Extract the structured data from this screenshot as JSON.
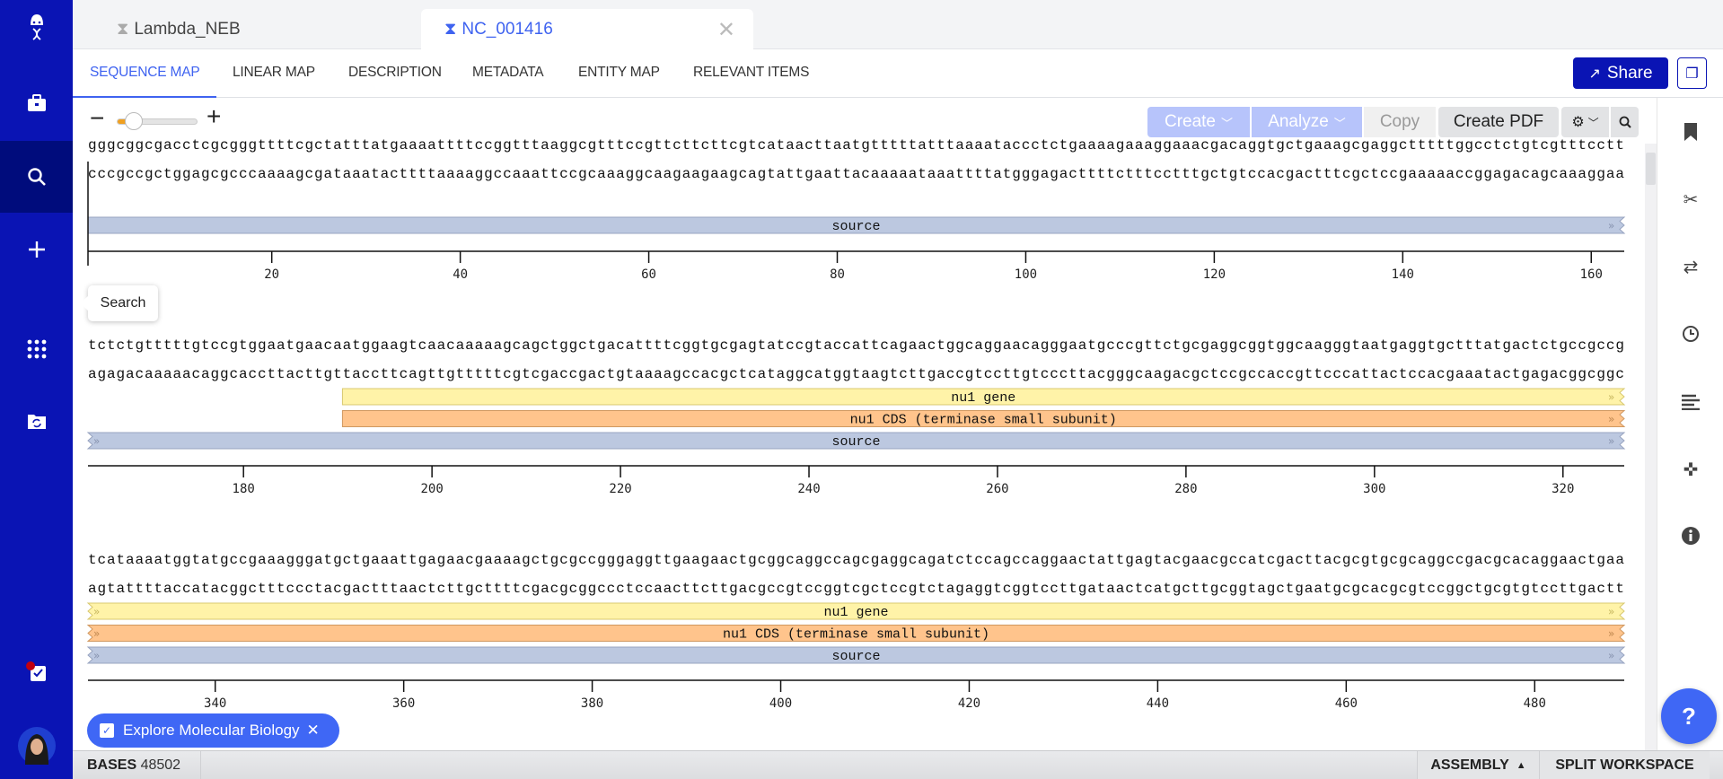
{
  "app": {
    "colors": {
      "sidebar": "#0a14b4",
      "accent": "#3f63f0",
      "share": "#0a14b4",
      "gene": "#fff3a8",
      "cds": "#ffc48c",
      "source": "#bcc8e0"
    }
  },
  "sidebar": {
    "items": [
      {
        "icon": "dna-logo-icon"
      },
      {
        "icon": "briefcase-icon"
      },
      {
        "icon": "search-icon",
        "active": true
      },
      {
        "icon": "plus-icon"
      },
      {
        "icon": "apps-grid-icon"
      },
      {
        "icon": "sync-folder-icon"
      },
      {
        "icon": "tasks-check-icon",
        "badge": true
      },
      {
        "icon": "avatar"
      }
    ],
    "tooltip": "Search"
  },
  "file_tabs": [
    {
      "label": "Lambda_NEB",
      "active": false
    },
    {
      "label": "NC_001416",
      "active": true
    }
  ],
  "nav_tabs": [
    "SEQUENCE MAP",
    "LINEAR MAP",
    "DESCRIPTION",
    "METADATA",
    "ENTITY MAP",
    "RELEVANT ITEMS"
  ],
  "header": {
    "share_label": "Share"
  },
  "toolbar": {
    "zoom_minus": "−",
    "zoom_plus": "+",
    "zoom_level": 0.15,
    "create": "Create",
    "analyze": "Analyze",
    "copy": "Copy",
    "create_pdf": "Create PDF"
  },
  "sequence_rows": [
    {
      "start": 1,
      "end": 163,
      "ticks": [
        20,
        40,
        60,
        80,
        100,
        120,
        140,
        160
      ],
      "top": "gggcggcgacctcgcgggttttcgctatttatgaaaattttccggtttaaggcgtttccgttcttcttcgtcataacttaatgtttttatttaaaataccctctgaaaagaaaggaaacgacaggtgctgaaagcgaggctttttggcctctgtcgtttcctt",
      "bottom": "cccgccgctggagcgcccaaaagcgataaatacttttaaaaggccaaattccgcaaaggcaagaagaagcagtattgaattacaaaaataaattttatgggagacttttctttcctttgctgtccacgactttcgctccgaaaaaccggagacagcaaaggaa",
      "features": [
        {
          "label": "source",
          "type": "source",
          "from": 1,
          "to": 163,
          "cont_left": false
        }
      ]
    },
    {
      "start": 164,
      "end": 326,
      "ticks": [
        180,
        200,
        220,
        240,
        260,
        280,
        300,
        320
      ],
      "top": "tctctgtttttgtccgtggaatgaacaatggaagtcaacaaaaagcagctggctgacattttcggtgcgagtatccgtaccattcagaactggcaggaacagggaatgcccgttctgcgaggcggtggcaagggtaatgaggtgctttatgactctgccgccg",
      "bottom": "agagacaaaaacaggcaccttacttgttaccttcagttgtttttcgtcgaccgactgtaaaagccacgctcataggcatggtaagtcttgaccgtccttgtcccttacgggcaagacgctccgccaccgttcccattactccacgaaatactgagacggcggc",
      "features": [
        {
          "label": "nu1 gene",
          "type": "gene",
          "from": 191,
          "to": 326,
          "cont_left": false
        },
        {
          "label": "nu1 CDS (terminase small subunit)",
          "type": "cds",
          "from": 191,
          "to": 326,
          "cont_left": false
        },
        {
          "label": "source",
          "type": "source",
          "from": 164,
          "to": 326,
          "cont_left": true
        }
      ]
    },
    {
      "start": 327,
      "end": 489,
      "ticks": [
        340,
        360,
        380,
        400,
        420,
        440,
        460,
        480
      ],
      "top": "tcataaaatggtatgccgaaagggatgctgaaattgagaacgaaaagctgcgccgggaggttgaagaactgcggcaggccagcgaggcagatctccagccaggaactattgagtacgaacgccatcgacttacgcgtgcgcaggccgacgcacaggaactgaa",
      "bottom": "agtattttaccatacggctttccctacgactttaactcttgcttttcgacgcggccctccaacttcttgacgccgtccggtcgctccgtctagaggtcggtccttgataactcatgcttgcggtagctgaatgcgcacgcgtccggctgcgtgtccttgactt",
      "features": [
        {
          "label": "nu1 gene",
          "type": "gene",
          "from": 327,
          "to": 489,
          "cont_left": true
        },
        {
          "label": "nu1 CDS (terminase small subunit)",
          "type": "cds",
          "from": 327,
          "to": 489,
          "cont_left": true
        },
        {
          "label": "source",
          "type": "source",
          "from": 327,
          "to": 489,
          "cont_left": true
        }
      ]
    }
  ],
  "right_sidebar": [
    "bookmark-icon",
    "scissors-icon",
    "swap-arrows-icon",
    "history-clock-icon",
    "align-left-icon",
    "crosshair-icon",
    "info-icon"
  ],
  "explore_chip": {
    "label": "Explore Molecular Biology"
  },
  "bottom_bar": {
    "bases_label": "BASES",
    "bases_value": "48502",
    "assembly": "ASSEMBLY",
    "split": "SPLIT WORKSPACE"
  },
  "help_label": "?"
}
